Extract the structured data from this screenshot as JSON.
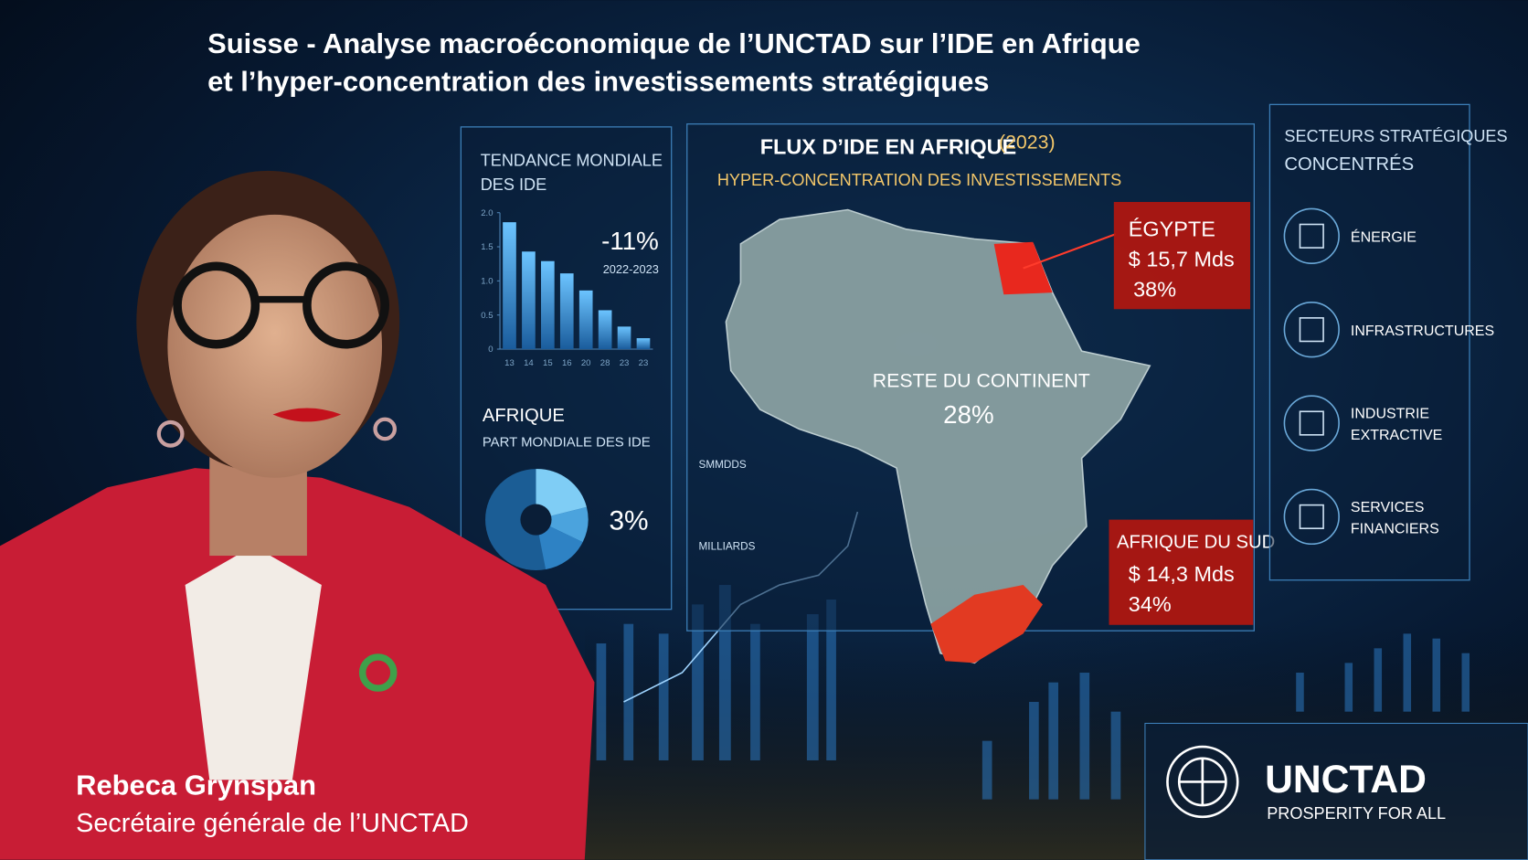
{
  "header": {
    "title_lines": [
      "Suisse - Analyse macroéconomique de l’UNCTAD sur l’IDE en Afrique",
      "et l’hyper-concentration des investissements stratégiques"
    ]
  },
  "trend_panel": {
    "title_lines": [
      "TENDANCE MONDIALE",
      "DES IDE"
    ],
    "chart": {
      "ylim": [
        0,
        2
      ],
      "yticks": [
        {
          "value": 2,
          "label": "2.0"
        },
        {
          "value": 1.5,
          "label": "1.5"
        },
        {
          "value": 1,
          "label": "1.0"
        },
        {
          "value": 0.5,
          "label": "0.5"
        },
        0
      ],
      "categories": [
        "13",
        "14",
        "15",
        "16",
        "20",
        "28",
        "23",
        "23"
      ],
      "values": [
        1.86,
        1.43,
        1.29,
        1.11,
        0.86,
        0.57,
        0.33,
        0.16
      ]
    },
    "change": "-11%",
    "period": "2022-2023"
  },
  "share_panel": {
    "title": "AFRIQUE",
    "subtitle": "PART MONDIALE DES IDE",
    "share": "3%"
  },
  "map_panel": {
    "title": "FLUX D’IDE EN AFRIQUE",
    "year": "(2023)",
    "subtitle": "HYPER-CONCENTRATION DES INVESTISSEMENTS",
    "egypt": {
      "name": "ÉGYPTE",
      "amount": "$ 15,7 Mds",
      "share": "38%"
    },
    "rest": {
      "name": "RESTE DU CONTINENT",
      "share": "28%"
    },
    "south_africa": {
      "name": "AFRIQUE DU SUD",
      "amount": "$ 14,3 Mds",
      "share": "34%"
    },
    "side_labels": [
      "SMMDDS",
      "MILLIARDS"
    ]
  },
  "sectors_panel": {
    "title_lines": [
      "SECTEURS STRATÉGIQUES",
      "CONCENTRÉS"
    ],
    "sectors": [
      [
        "ÉNERGIE"
      ],
      [
        "INFRASTRUCTURES"
      ],
      [
        "INDUSTRIE",
        "EXTRACTIVE"
      ],
      [
        "SERVICES",
        "FINANCIERS"
      ]
    ]
  },
  "logo": {
    "name": "UNCTAD",
    "tagline": "PROSPERITY FOR ALL"
  },
  "caption": {
    "name": "Rebeca Grynspan",
    "role": "Secrétaire générale de l’UNCTAD"
  }
}
